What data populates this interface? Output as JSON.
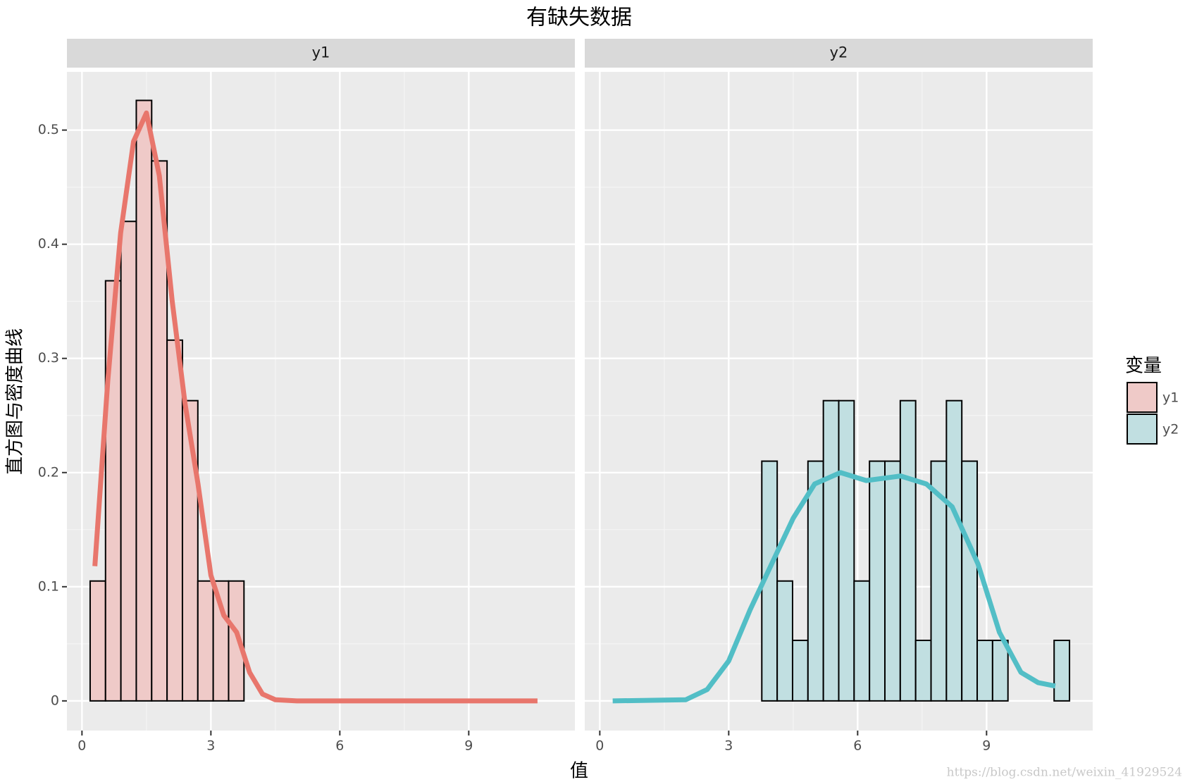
{
  "chart_data": {
    "type": "histogram",
    "title": "有缺失数据",
    "x_label": "值",
    "y_label": "直方图与密度曲线",
    "legend_title": "变量",
    "watermark": "https://blog.csdn.net/weixin_41929524",
    "bins": [
      0.19,
      0.548,
      0.906,
      1.264,
      1.622,
      1.98,
      2.338,
      2.696,
      3.054,
      3.412,
      3.77,
      4.128,
      4.486,
      4.844,
      5.202,
      5.56,
      5.918,
      6.276,
      6.634,
      6.992,
      7.35,
      7.708,
      8.066,
      8.424,
      8.782,
      9.14,
      9.498,
      9.856,
      10.214,
      10.572,
      10.93
    ],
    "xlim": [
      -0.35,
      11.47
    ],
    "xticks": [
      0,
      3,
      6,
      9
    ],
    "ylim": [
      -0.026,
      0.551
    ],
    "yticks": [
      0.0,
      0.1,
      0.2,
      0.3,
      0.4,
      0.5
    ],
    "grid": true,
    "legend": "right",
    "series": [
      {
        "name": "y1",
        "color": "#e8766c",
        "fill": "#efcac8",
        "values": [
          0.105,
          0.368,
          0.42,
          0.526,
          0.473,
          0.316,
          0.263,
          0.105,
          0.105,
          0.105,
          0,
          0,
          0,
          0,
          0,
          0,
          0,
          0,
          0,
          0,
          0,
          0,
          0,
          0,
          0,
          0,
          0,
          0,
          0,
          0
        ],
        "density_x": [
          0.3,
          0.6,
          0.9,
          1.2,
          1.5,
          1.8,
          2.1,
          2.4,
          2.7,
          3.0,
          3.3,
          3.6,
          3.9,
          4.2,
          4.5,
          5,
          7,
          9,
          10.6
        ],
        "density_y": [
          0.118,
          0.28,
          0.41,
          0.49,
          0.515,
          0.46,
          0.35,
          0.26,
          0.19,
          0.11,
          0.075,
          0.06,
          0.025,
          0.006,
          0.001,
          0,
          0,
          0,
          0
        ]
      },
      {
        "name": "y2",
        "color": "#52bec6",
        "fill": "#c1dfe1",
        "values": [
          0,
          0,
          0,
          0,
          0,
          0,
          0,
          0,
          0,
          0,
          0.21,
          0.105,
          0.053,
          0.21,
          0.263,
          0.263,
          0.105,
          0.21,
          0.21,
          0.263,
          0.053,
          0.21,
          0.263,
          0.21,
          0.053,
          0.053,
          0,
          0,
          0,
          0.053
        ],
        "density_x": [
          0.3,
          2,
          2.5,
          3,
          3.5,
          4,
          4.5,
          5,
          5.6,
          6.2,
          7,
          7.6,
          8.2,
          8.8,
          9.3,
          9.8,
          10.2,
          10.6
        ],
        "density_y": [
          0,
          0.001,
          0.01,
          0.035,
          0.08,
          0.12,
          0.16,
          0.19,
          0.2,
          0.193,
          0.197,
          0.19,
          0.17,
          0.12,
          0.06,
          0.025,
          0.016,
          0.013
        ]
      }
    ]
  }
}
